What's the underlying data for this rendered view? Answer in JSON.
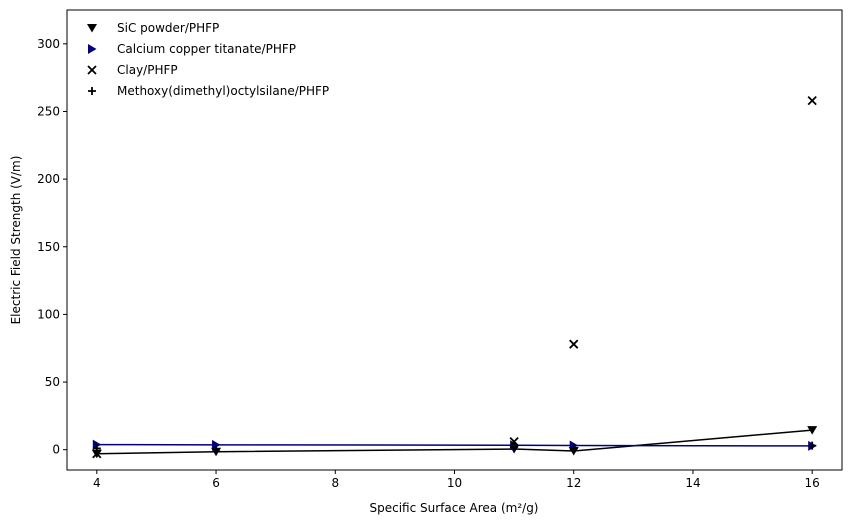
{
  "chart_data": {
    "type": "scatter",
    "title": "",
    "xlabel": "Specific Surface Area (m²/g)",
    "ylabel": "Electric Field Strength (V/m)",
    "xlim": [
      3.5,
      16.5
    ],
    "ylim": [
      -15,
      325
    ],
    "xticks": [
      4,
      6,
      8,
      10,
      12,
      14,
      16
    ],
    "yticks": [
      0,
      50,
      100,
      150,
      200,
      250,
      300
    ],
    "grid": false,
    "legend_position": "top-left",
    "series": [
      {
        "name": "SiC powder/PHFP",
        "marker": "triangle-down",
        "color": "#000000",
        "line": true,
        "x": [
          4,
          6,
          11,
          12,
          16
        ],
        "y": [
          -3,
          -1.5,
          0.5,
          -1,
          14.5
        ]
      },
      {
        "name": "Calcium copper titanate/PHFP",
        "marker": "triangle-right",
        "color": "#000080",
        "line": true,
        "x": [
          4,
          6,
          11,
          12,
          16
        ],
        "y": [
          3.8,
          3.6,
          3.3,
          3.1,
          2.8
        ]
      },
      {
        "name": "Clay/PHFP",
        "marker": "x",
        "color": "#000000",
        "line": false,
        "x": [
          4,
          11,
          12,
          16
        ],
        "y": [
          -3,
          6,
          78,
          258
        ]
      },
      {
        "name": "Methoxy(dimethyl)octylsilane/PHFP",
        "marker": "plus",
        "color": "#000000",
        "line": false,
        "x": [
          4,
          6,
          11,
          12,
          16
        ],
        "y": [
          1,
          0,
          2,
          1,
          3
        ]
      }
    ]
  }
}
